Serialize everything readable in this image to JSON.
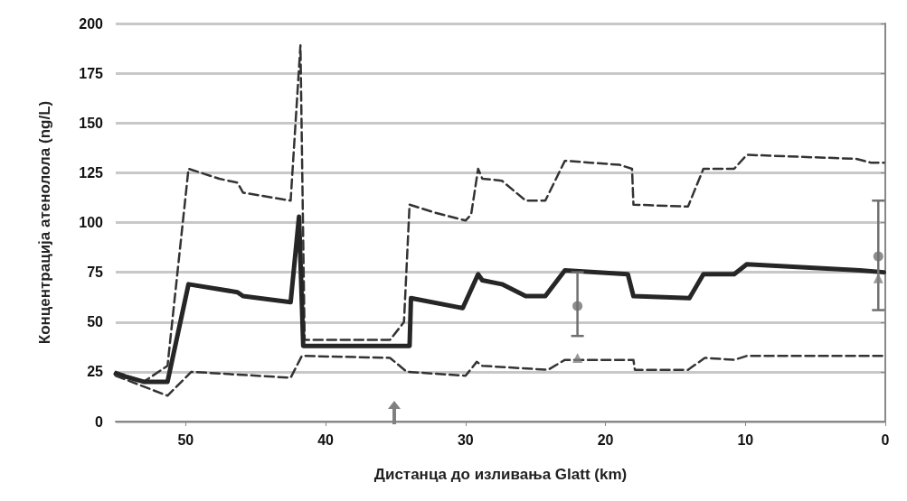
{
  "chart_data": {
    "type": "line",
    "xlabel": "Дистанца до изливања Glatt (km)",
    "ylabel": "Концентрација атенолола (ng/L)",
    "xlim": [
      55,
      0
    ],
    "xticks": [
      50,
      40,
      30,
      20,
      10,
      0
    ],
    "ylim": [
      0,
      200
    ],
    "yticks": [
      0,
      25,
      50,
      75,
      100,
      125,
      150,
      175,
      200
    ],
    "grid": "y",
    "series": [
      {
        "color": "#333333",
        "line_style": "dashed",
        "marker": "none",
        "x": [
          55,
          53,
          51.3,
          49.8,
          47.6,
          46.3,
          45.9,
          42.5,
          41.8,
          41.5,
          35.4,
          34.4,
          34,
          32.2,
          30,
          29.6,
          29.1,
          28.8,
          27.4,
          25.7,
          24.3,
          22.9,
          19,
          18.1,
          18,
          14.1,
          13,
          10.8,
          9.9,
          2.1,
          1,
          0.1
        ],
        "values": [
          25,
          20,
          28,
          127,
          122,
          120,
          115,
          111,
          189,
          41,
          41,
          50,
          109,
          105,
          101,
          104,
          127,
          122,
          121,
          111,
          111,
          131,
          129,
          127,
          109,
          108,
          127,
          127,
          134,
          132,
          130,
          130
        ]
      },
      {
        "color": "#262626",
        "line_style": "solid",
        "marker": "none",
        "x": [
          55,
          53,
          51.3,
          49.8,
          46.3,
          45.9,
          42.5,
          41.9,
          41.6,
          34,
          33.9,
          30.2,
          29.1,
          28.8,
          27.4,
          25.7,
          24.3,
          22.9,
          18.4,
          18,
          14,
          13,
          10.8,
          9.9,
          1.8,
          0.1
        ],
        "values": [
          24,
          20,
          20,
          69,
          65,
          63,
          60,
          103,
          38,
          38,
          62,
          57,
          74,
          71,
          69,
          63,
          63,
          76,
          74,
          63,
          62,
          74,
          74,
          79,
          76,
          75
        ]
      },
      {
        "color": "#333333",
        "line_style": "dashed",
        "marker": "none",
        "x": [
          55,
          51.3,
          49.6,
          42.5,
          41.7,
          35.4,
          34.2,
          30,
          29.2,
          28.8,
          24.1,
          22.9,
          18,
          17.9,
          14.1,
          12.9,
          10.8,
          9.9,
          0.1
        ],
        "values": [
          23,
          13,
          25,
          22,
          33,
          32,
          25,
          23,
          30,
          28,
          26,
          31,
          31,
          26,
          26,
          32,
          31,
          33,
          33
        ]
      },
      {
        "type": "scatter",
        "color": "#707070",
        "marker": "circle",
        "x": [
          22,
          0.5
        ],
        "values": [
          58,
          83
        ],
        "errors": [
          [
            43,
            75
          ],
          [
            56,
            111
          ]
        ]
      },
      {
        "type": "scatter",
        "color": "#808080",
        "marker": "triangle",
        "x": [
          22,
          0.5
        ],
        "values": [
          32,
          72
        ]
      }
    ]
  }
}
